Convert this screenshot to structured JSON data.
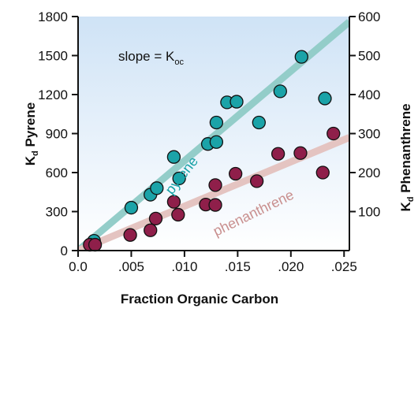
{
  "chart_data": {
    "type": "scatter",
    "xlabel": "Fraction Organic Carbon",
    "ylabel_left": {
      "main": "K",
      "sub": "d",
      "rest": " Pyrene"
    },
    "ylabel_right": {
      "main": "K",
      "sub": "d",
      "rest": " Phenanthrene"
    },
    "annotation": {
      "main": "slope = K",
      "sub": "oc"
    },
    "xlim": [
      0,
      0.0255
    ],
    "ylim_left": [
      0,
      1800
    ],
    "ylim_right": [
      0,
      600
    ],
    "x_ticks": [
      0,
      0.005,
      0.01,
      0.015,
      0.02,
      0.025
    ],
    "x_tick_labels": [
      "0.0",
      ".005",
      ".010",
      ".015",
      ".020",
      ".025"
    ],
    "y_left_ticks": [
      0,
      300,
      600,
      900,
      1200,
      1500,
      1800
    ],
    "y_left_tick_labels": [
      "0",
      "300",
      "600",
      "900",
      "1200",
      "1500",
      "1800"
    ],
    "y_right_ticks": [
      100,
      200,
      300,
      400,
      500,
      600
    ],
    "y_right_tick_labels": [
      "100",
      "200",
      "300",
      "400",
      "500",
      "600"
    ],
    "background_gradient": [
      "#cfe3f6",
      "#ffffff"
    ],
    "series": [
      {
        "name": "pyrene",
        "axis": "left",
        "color": "#1ba3a8",
        "line_color": "#93cdc9",
        "label_color": "#1ba3a8",
        "fit": {
          "x": [
            0,
            0.0255
          ],
          "y": [
            0,
            1760
          ]
        },
        "points": [
          {
            "x": 0.0015,
            "y": 75
          },
          {
            "x": 0.005,
            "y": 330
          },
          {
            "x": 0.0068,
            "y": 430
          },
          {
            "x": 0.0074,
            "y": 480
          },
          {
            "x": 0.009,
            "y": 720
          },
          {
            "x": 0.0095,
            "y": 555
          },
          {
            "x": 0.0122,
            "y": 820
          },
          {
            "x": 0.013,
            "y": 835
          },
          {
            "x": 0.013,
            "y": 985
          },
          {
            "x": 0.014,
            "y": 1140
          },
          {
            "x": 0.0149,
            "y": 1145
          },
          {
            "x": 0.017,
            "y": 985
          },
          {
            "x": 0.019,
            "y": 1225
          },
          {
            "x": 0.021,
            "y": 1490
          },
          {
            "x": 0.0232,
            "y": 1170
          }
        ]
      },
      {
        "name": "phenanthrene",
        "axis": "right",
        "color": "#8f1f4a",
        "line_color": "#e4c4c1",
        "label_color": "#c9908f",
        "fit": {
          "x": [
            0,
            0.0255
          ],
          "y": [
            0,
            290
          ]
        },
        "points": [
          {
            "x": 0.0011,
            "y": 15
          },
          {
            "x": 0.0016,
            "y": 15
          },
          {
            "x": 0.0049,
            "y": 40
          },
          {
            "x": 0.0068,
            "y": 52
          },
          {
            "x": 0.0073,
            "y": 82
          },
          {
            "x": 0.009,
            "y": 125
          },
          {
            "x": 0.0094,
            "y": 92
          },
          {
            "x": 0.012,
            "y": 118
          },
          {
            "x": 0.0129,
            "y": 117
          },
          {
            "x": 0.0129,
            "y": 168
          },
          {
            "x": 0.0148,
            "y": 197
          },
          {
            "x": 0.0168,
            "y": 178
          },
          {
            "x": 0.0188,
            "y": 248
          },
          {
            "x": 0.0209,
            "y": 250
          },
          {
            "x": 0.023,
            "y": 200
          },
          {
            "x": 0.024,
            "y": 300
          }
        ]
      }
    ]
  }
}
